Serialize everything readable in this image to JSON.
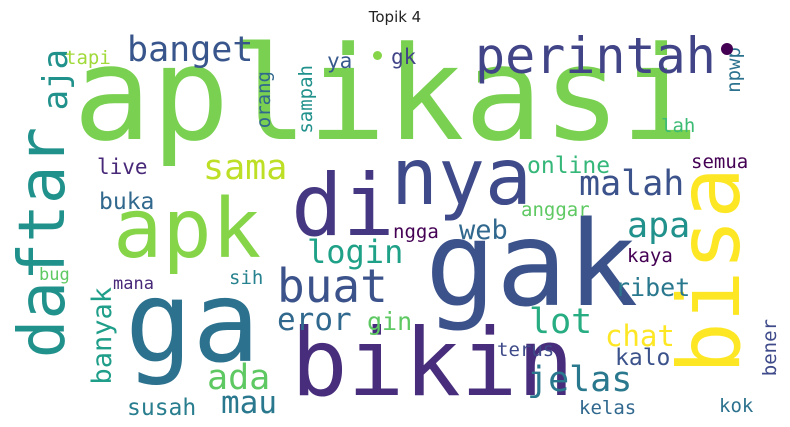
{
  "title": "Topik 4",
  "colors": {
    "yellow": "#e2e418",
    "light_green": "#86d549",
    "mid_green": "#35b779",
    "teal": "#1f9e89",
    "blue": "#26828e",
    "indigo": "#3e4a89",
    "dark_purple": "#482878",
    "deep_purple": "#440154"
  },
  "words": [
    {
      "id": "aplikasi",
      "text": "aplikasi",
      "color": "#7ad151"
    },
    {
      "id": "gak",
      "text": "gak",
      "color": "#3b528b"
    },
    {
      "id": "ga",
      "text": "ga",
      "color": "#2c728e"
    },
    {
      "id": "bikin",
      "text": "bikin",
      "color": "#472d7b"
    },
    {
      "id": "bisa",
      "text": "bisa",
      "color": "#fde725"
    },
    {
      "id": "daftar",
      "text": "daftar",
      "color": "#21918c"
    },
    {
      "id": "apk",
      "text": "apk",
      "color": "#86d549"
    },
    {
      "id": "nya",
      "text": "nya",
      "color": "#3e4a89"
    },
    {
      "id": "di",
      "text": "di",
      "color": "#453781"
    },
    {
      "id": "perintah",
      "text": "perintah",
      "color": "#414487"
    },
    {
      "id": "buat",
      "text": "buat",
      "color": "#3b528b"
    },
    {
      "id": "banget",
      "text": "banget",
      "color": "#39568c"
    },
    {
      "id": "malah",
      "text": "malah",
      "color": "#3b528b"
    },
    {
      "id": "jelas",
      "text": "jelas",
      "color": "#2a788e"
    },
    {
      "id": "lot",
      "text": "lot",
      "color": "#27ad81"
    },
    {
      "id": "login",
      "text": "login",
      "color": "#1fa188"
    },
    {
      "id": "apa",
      "text": "apa",
      "color": "#21918c"
    },
    {
      "id": "sama",
      "text": "sama",
      "color": "#bddf26"
    },
    {
      "id": "ada",
      "text": "ada",
      "color": "#5ec962"
    },
    {
      "id": "aja",
      "text": "aja",
      "color": "#21918c"
    },
    {
      "id": "eror",
      "text": "eror",
      "color": "#31688e"
    },
    {
      "id": "mau",
      "text": "mau",
      "color": "#2a788e"
    },
    {
      "id": "banyak",
      "text": "banyak",
      "color": "#1f9e89"
    },
    {
      "id": "chat",
      "text": "chat",
      "color": "#fde725"
    },
    {
      "id": "web",
      "text": "web",
      "color": "#31688e"
    },
    {
      "id": "susah",
      "text": "susah",
      "color": "#287d8e"
    },
    {
      "id": "ribet",
      "text": "ribet",
      "color": "#2a788e"
    },
    {
      "id": "kalo",
      "text": "kalo",
      "color": "#3b528b"
    },
    {
      "id": "online",
      "text": "online",
      "color": "#35b779"
    },
    {
      "id": "anggar",
      "text": "anggar",
      "color": "#5ec962"
    },
    {
      "id": "gin",
      "text": "gin",
      "color": "#5ec962"
    },
    {
      "id": "buka",
      "text": "buka",
      "color": "#31688e"
    },
    {
      "id": "live",
      "text": "live",
      "color": "#482878"
    },
    {
      "id": "kaya",
      "text": "kaya",
      "color": "#440154"
    },
    {
      "id": "tapi",
      "text": "tapi",
      "color": "#a0da39"
    },
    {
      "id": "gk",
      "text": "gk",
      "color": "#414487"
    },
    {
      "id": "ya",
      "text": "ya",
      "color": "#38598c"
    },
    {
      "id": "sampah",
      "text": "sampah",
      "color": "#21918c"
    },
    {
      "id": "orang",
      "text": "orang",
      "color": "#31688e"
    },
    {
      "id": "npwp",
      "text": "npwp",
      "color": "#2c728e"
    },
    {
      "id": "lah",
      "text": "lah",
      "color": "#3cbb75"
    },
    {
      "id": "semua",
      "text": "semua",
      "color": "#440154"
    },
    {
      "id": "ngga",
      "text": "ngga",
      "color": "#440154"
    },
    {
      "id": "sih",
      "text": "sih",
      "color": "#26828e"
    },
    {
      "id": "mana",
      "text": "mana",
      "color": "#482878"
    },
    {
      "id": "bug",
      "text": "bug",
      "color": "#5ec962"
    },
    {
      "id": "terus",
      "text": "terus",
      "color": "#3e4a89"
    },
    {
      "id": "kelas",
      "text": "kelas",
      "color": "#31688e"
    },
    {
      "id": "kok",
      "text": "kok",
      "color": "#2c728e"
    },
    {
      "id": "bener",
      "text": "bener",
      "color": "#3e4a89"
    }
  ]
}
